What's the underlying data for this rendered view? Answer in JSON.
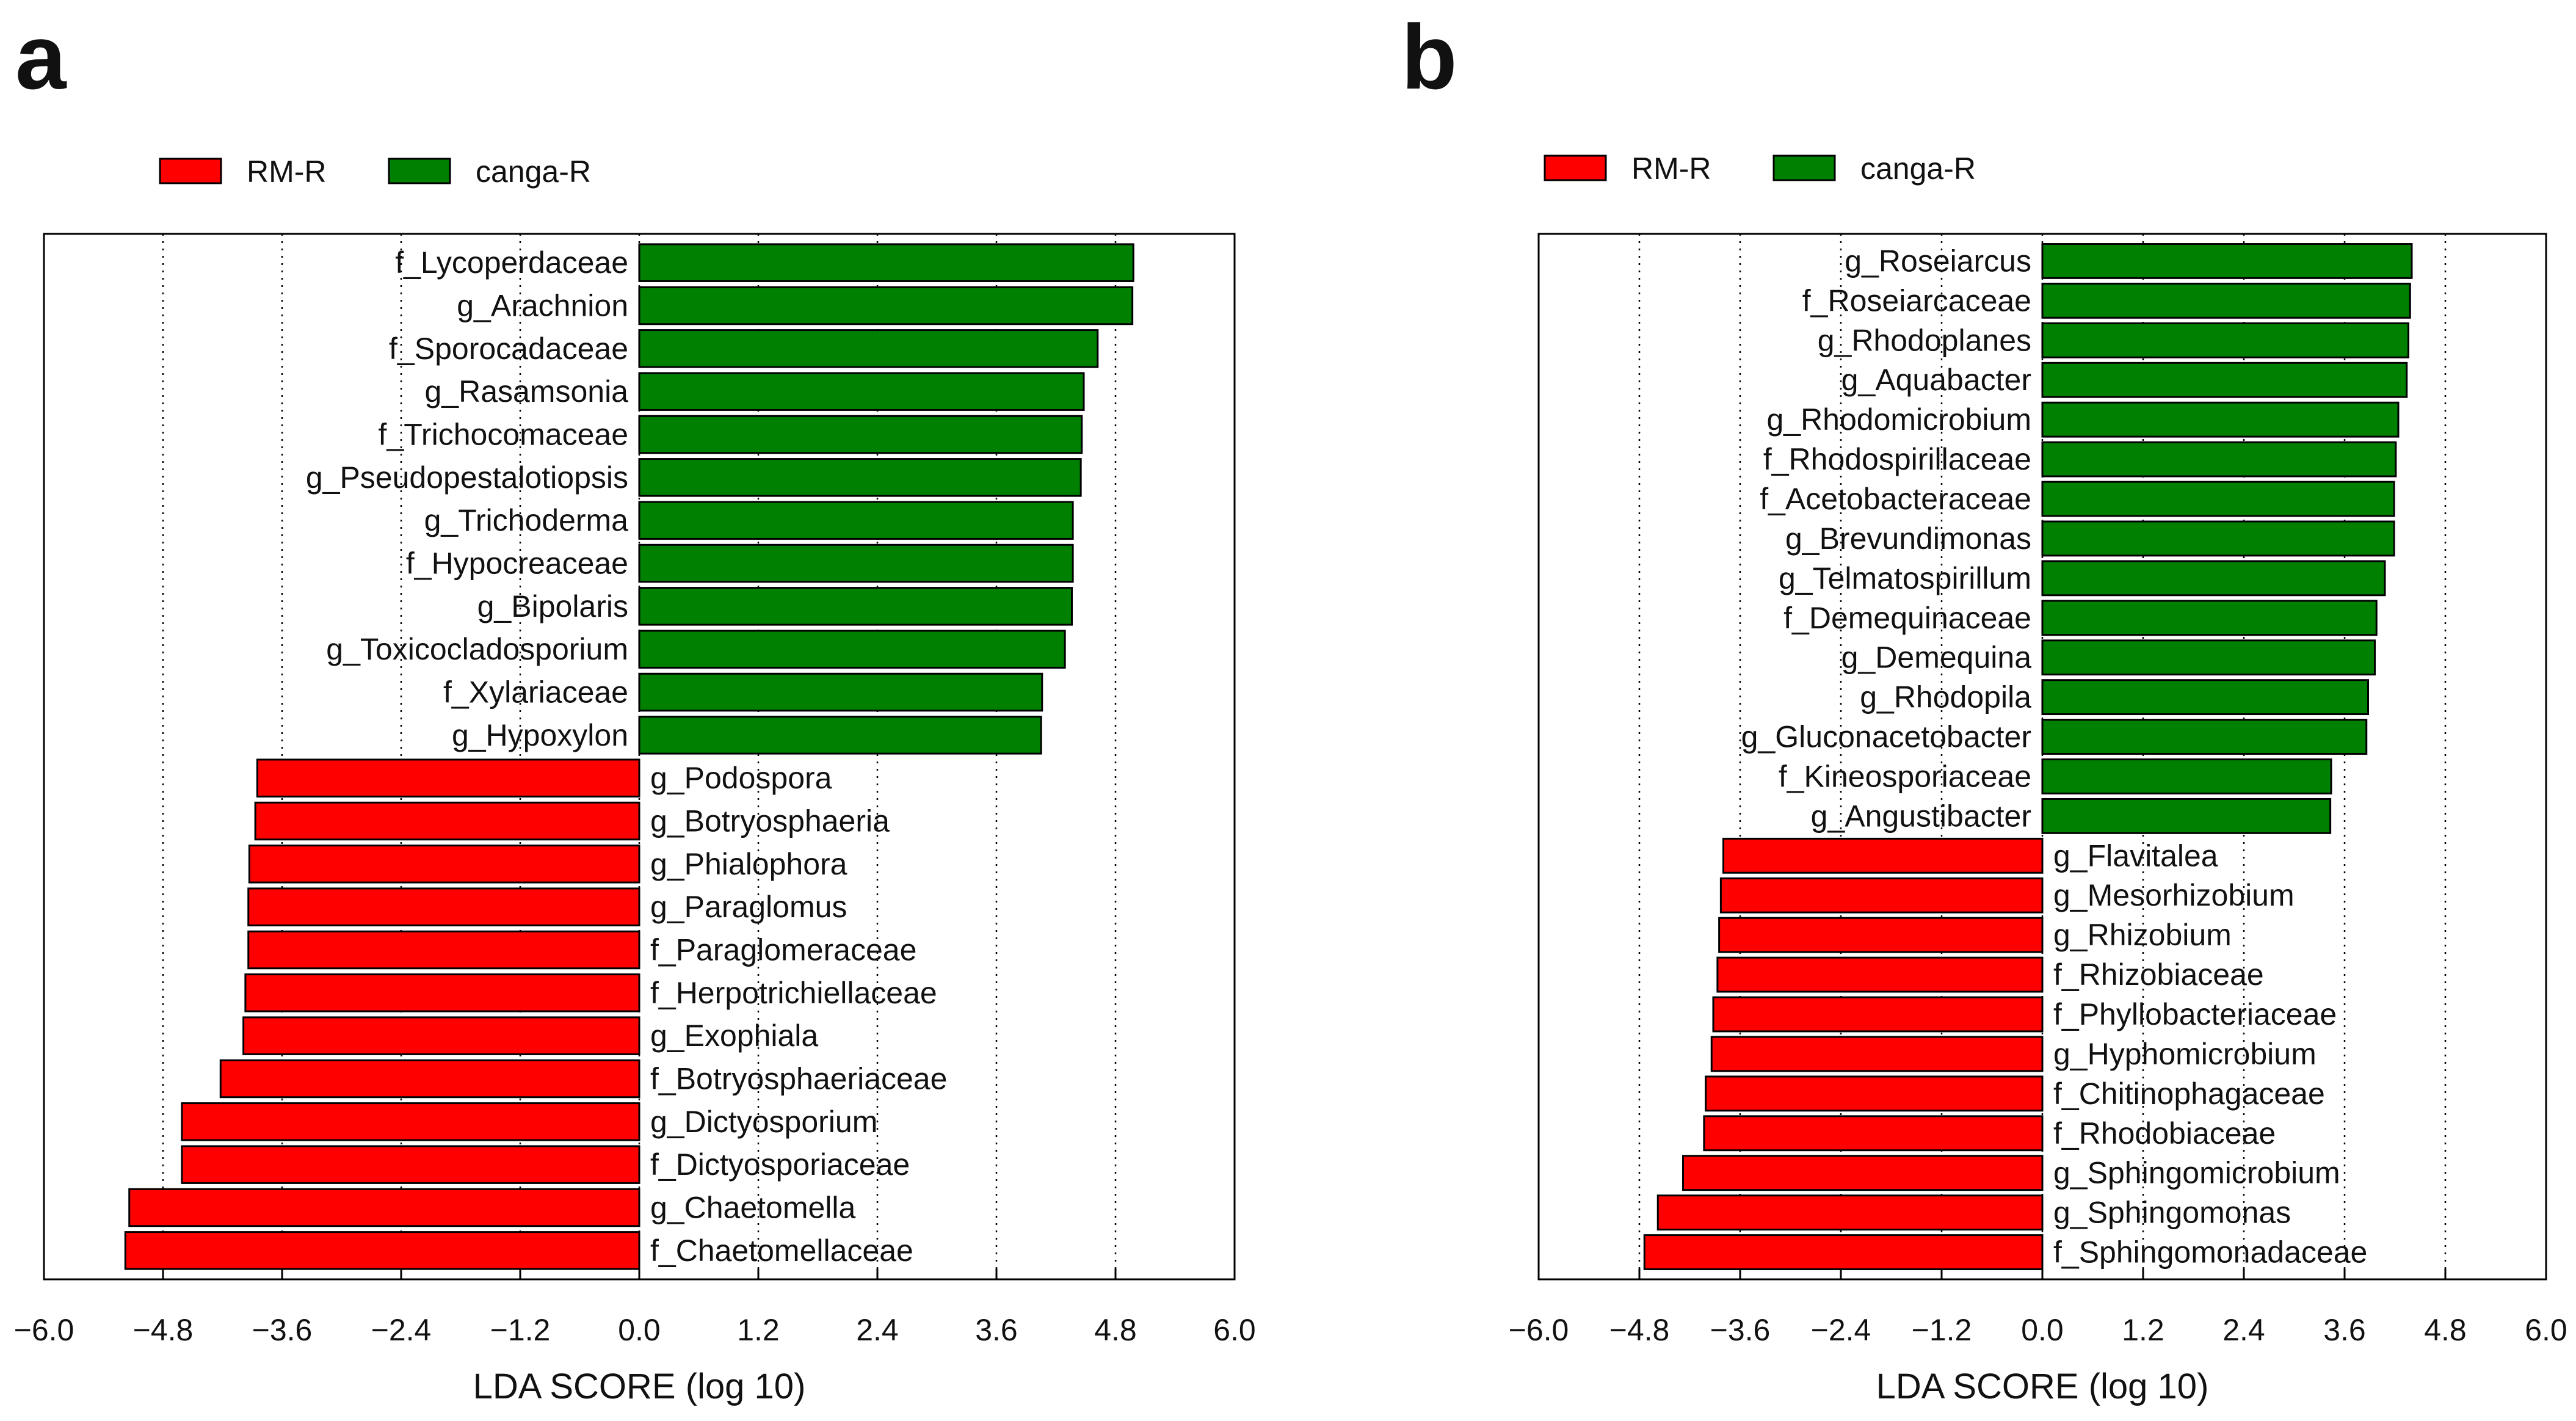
{
  "colors": {
    "rm": "#ff0000",
    "canga": "#008000",
    "edge": "#000000",
    "grid": "#000000"
  },
  "chart_data": [
    {
      "type": "bar",
      "orientation": "horizontal",
      "panel": "a",
      "legend": [
        {
          "name": "RM-R",
          "color": "#ff0000"
        },
        {
          "name": "canga-R",
          "color": "#008000"
        }
      ],
      "legend_position": "top-left",
      "xlabel": "LDA SCORE (log 10)",
      "xlim": [
        -6.0,
        6.0
      ],
      "xticks": [
        -6.0,
        -4.8,
        -3.6,
        -2.4,
        -1.2,
        0.0,
        1.2,
        2.4,
        3.6,
        4.8,
        6.0
      ],
      "xtick_labels": [
        "−6.0",
        "−4.8",
        "−3.6",
        "−2.4",
        "−1.2",
        "0.0",
        "1.2",
        "2.4",
        "3.6",
        "4.8",
        "6.0"
      ],
      "grid": "vertical dotted",
      "bars": [
        {
          "label": "f_Lycoperdaceae",
          "value": 4.98,
          "group": "canga-R"
        },
        {
          "label": "g_Arachnion",
          "value": 4.97,
          "group": "canga-R"
        },
        {
          "label": "f_Sporocadaceae",
          "value": 4.62,
          "group": "canga-R"
        },
        {
          "label": "g_Rasamsonia",
          "value": 4.48,
          "group": "canga-R"
        },
        {
          "label": "f_Trichocomaceae",
          "value": 4.46,
          "group": "canga-R"
        },
        {
          "label": "g_Pseudopestalotiopsis",
          "value": 4.45,
          "group": "canga-R"
        },
        {
          "label": "g_Trichoderma",
          "value": 4.37,
          "group": "canga-R"
        },
        {
          "label": "f_Hypocreaceae",
          "value": 4.37,
          "group": "canga-R"
        },
        {
          "label": "g_Bipolaris",
          "value": 4.36,
          "group": "canga-R"
        },
        {
          "label": "g_Toxicocladosporium",
          "value": 4.29,
          "group": "canga-R"
        },
        {
          "label": "f_Xylariaceae",
          "value": 4.06,
          "group": "canga-R"
        },
        {
          "label": "g_Hypoxylon",
          "value": 4.05,
          "group": "canga-R"
        },
        {
          "label": "g_Podospora",
          "value": -3.85,
          "group": "RM-R"
        },
        {
          "label": "g_Botryosphaeria",
          "value": -3.87,
          "group": "RM-R"
        },
        {
          "label": "g_Phialophora",
          "value": -3.93,
          "group": "RM-R"
        },
        {
          "label": "g_Paraglomus",
          "value": -3.94,
          "group": "RM-R"
        },
        {
          "label": "f_Paraglomeraceae",
          "value": -3.94,
          "group": "RM-R"
        },
        {
          "label": "f_Herpotrichiellaceae",
          "value": -3.97,
          "group": "RM-R"
        },
        {
          "label": "g_Exophiala",
          "value": -3.99,
          "group": "RM-R"
        },
        {
          "label": "f_Botryosphaeriaceae",
          "value": -4.22,
          "group": "RM-R"
        },
        {
          "label": "g_Dictyosporium",
          "value": -4.61,
          "group": "RM-R"
        },
        {
          "label": "f_Dictyosporiaceae",
          "value": -4.61,
          "group": "RM-R"
        },
        {
          "label": "g_Chaetomella",
          "value": -5.14,
          "group": "RM-R"
        },
        {
          "label": "f_Chaetomellaceae",
          "value": -5.18,
          "group": "RM-R"
        }
      ]
    },
    {
      "type": "bar",
      "orientation": "horizontal",
      "panel": "b",
      "legend": [
        {
          "name": "RM-R",
          "color": "#ff0000"
        },
        {
          "name": "canga-R",
          "color": "#008000"
        }
      ],
      "legend_position": "top-left",
      "xlabel": "LDA SCORE (log 10)",
      "xlim": [
        -6.0,
        6.0
      ],
      "xticks": [
        -6.0,
        -4.8,
        -3.6,
        -2.4,
        -1.2,
        0.0,
        1.2,
        2.4,
        3.6,
        4.8,
        6.0
      ],
      "xtick_labels": [
        "−6.0",
        "−4.8",
        "−3.6",
        "−2.4",
        "−1.2",
        "0.0",
        "1.2",
        "2.4",
        "3.6",
        "4.8",
        "6.0"
      ],
      "grid": "vertical dotted",
      "bars": [
        {
          "label": "g_Roseiarcus",
          "value": 4.4,
          "group": "canga-R"
        },
        {
          "label": "f_Roseiarcaceae",
          "value": 4.38,
          "group": "canga-R"
        },
        {
          "label": "g_Rhodoplanes",
          "value": 4.36,
          "group": "canga-R"
        },
        {
          "label": "g_Aquabacter",
          "value": 4.34,
          "group": "canga-R"
        },
        {
          "label": "g_Rhodomicrobium",
          "value": 4.24,
          "group": "canga-R"
        },
        {
          "label": "f_Rhodospirillaceae",
          "value": 4.21,
          "group": "canga-R"
        },
        {
          "label": "f_Acetobacteraceae",
          "value": 4.19,
          "group": "canga-R"
        },
        {
          "label": "g_Brevundimonas",
          "value": 4.19,
          "group": "canga-R"
        },
        {
          "label": "g_Telmatospirillum",
          "value": 4.08,
          "group": "canga-R"
        },
        {
          "label": "f_Demequinaceae",
          "value": 3.98,
          "group": "canga-R"
        },
        {
          "label": "g_Demequina",
          "value": 3.96,
          "group": "canga-R"
        },
        {
          "label": "g_Rhodopila",
          "value": 3.88,
          "group": "canga-R"
        },
        {
          "label": "g_Gluconacetobacter",
          "value": 3.86,
          "group": "canga-R"
        },
        {
          "label": "f_Kineosporiaceae",
          "value": 3.44,
          "group": "canga-R"
        },
        {
          "label": "g_Angustibacter",
          "value": 3.43,
          "group": "canga-R"
        },
        {
          "label": "g_Flavitalea",
          "value": -3.8,
          "group": "RM-R"
        },
        {
          "label": "g_Mesorhizobium",
          "value": -3.83,
          "group": "RM-R"
        },
        {
          "label": "g_Rhizobium",
          "value": -3.85,
          "group": "RM-R"
        },
        {
          "label": "f_Rhizobiaceae",
          "value": -3.87,
          "group": "RM-R"
        },
        {
          "label": "f_Phyllobacteriaceae",
          "value": -3.92,
          "group": "RM-R"
        },
        {
          "label": "g_Hyphomicrobium",
          "value": -3.94,
          "group": "RM-R"
        },
        {
          "label": "f_Chitinophagaceae",
          "value": -4.01,
          "group": "RM-R"
        },
        {
          "label": "f_Rhodobiaceae",
          "value": -4.03,
          "group": "RM-R"
        },
        {
          "label": "g_Sphingomicrobium",
          "value": -4.28,
          "group": "RM-R"
        },
        {
          "label": "g_Sphingomonas",
          "value": -4.58,
          "group": "RM-R"
        },
        {
          "label": "f_Sphingomonadaceae",
          "value": -4.74,
          "group": "RM-R"
        }
      ]
    }
  ]
}
